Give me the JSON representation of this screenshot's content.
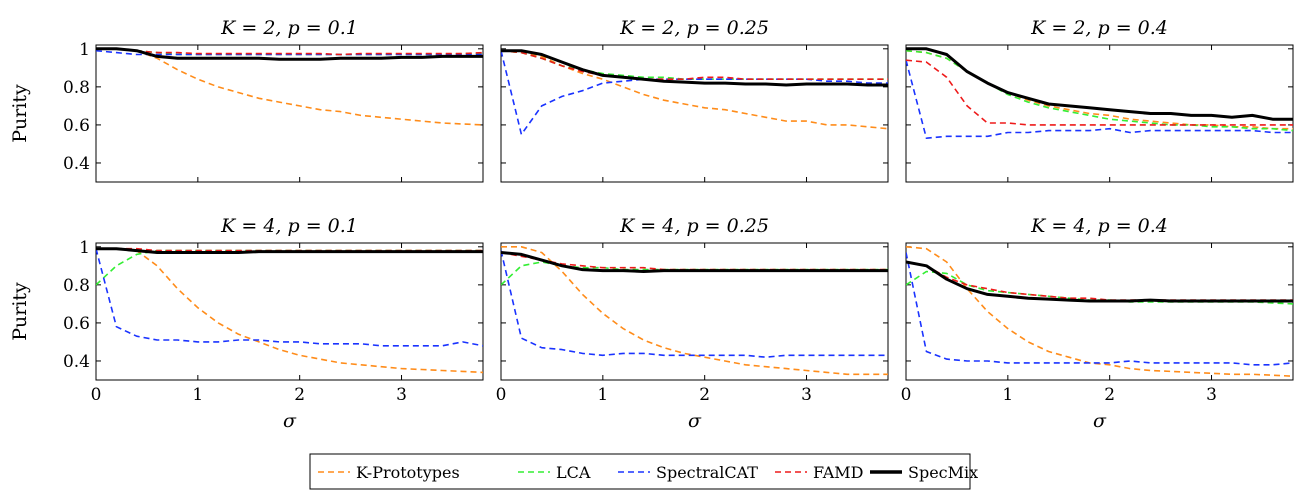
{
  "chart_data": [
    {
      "type": "line",
      "title": "K = 2, p = 0.1",
      "xlabel": "",
      "ylabel": "Purity",
      "xlim": [
        0,
        3.8
      ],
      "ylim": [
        0.3,
        1.02
      ],
      "x": [
        0,
        0.2,
        0.4,
        0.6,
        0.8,
        1.0,
        1.2,
        1.4,
        1.6,
        1.8,
        2.0,
        2.2,
        2.4,
        2.6,
        2.8,
        3.0,
        3.2,
        3.4,
        3.6,
        3.8
      ],
      "series": [
        {
          "name": "K-Prototypes",
          "values": [
            1.0,
            1.0,
            0.99,
            0.95,
            0.89,
            0.84,
            0.8,
            0.77,
            0.74,
            0.72,
            0.7,
            0.68,
            0.67,
            0.65,
            0.64,
            0.63,
            0.62,
            0.61,
            0.605,
            0.6
          ]
        },
        {
          "name": "LCA",
          "values": [
            1.0,
            1.0,
            0.99,
            0.98,
            0.97,
            0.97,
            0.97,
            0.97,
            0.97,
            0.97,
            0.97,
            0.97,
            0.97,
            0.97,
            0.97,
            0.97,
            0.97,
            0.97,
            0.975,
            0.975
          ]
        },
        {
          "name": "SpectralCAT",
          "values": [
            0.99,
            0.98,
            0.97,
            0.97,
            0.97,
            0.97,
            0.97,
            0.97,
            0.97,
            0.97,
            0.97,
            0.97,
            0.97,
            0.97,
            0.97,
            0.97,
            0.97,
            0.97,
            0.97,
            0.97
          ]
        },
        {
          "name": "FAMD",
          "values": [
            1.0,
            1.0,
            0.99,
            0.98,
            0.98,
            0.975,
            0.975,
            0.975,
            0.975,
            0.975,
            0.975,
            0.975,
            0.97,
            0.975,
            0.975,
            0.975,
            0.975,
            0.975,
            0.975,
            0.98
          ]
        },
        {
          "name": "SpecMix",
          "values": [
            1.0,
            1.0,
            0.99,
            0.96,
            0.95,
            0.95,
            0.95,
            0.95,
            0.95,
            0.945,
            0.945,
            0.945,
            0.95,
            0.95,
            0.95,
            0.955,
            0.955,
            0.96,
            0.96,
            0.96
          ]
        }
      ]
    },
    {
      "type": "line",
      "title": "K = 2, p = 0.25",
      "xlabel": "",
      "ylabel": "",
      "xlim": [
        0,
        3.8
      ],
      "ylim": [
        0.3,
        1.02
      ],
      "x": [
        0,
        0.2,
        0.4,
        0.6,
        0.8,
        1.0,
        1.2,
        1.4,
        1.6,
        1.8,
        2.0,
        2.2,
        2.4,
        2.6,
        2.8,
        3.0,
        3.2,
        3.4,
        3.6,
        3.8
      ],
      "series": [
        {
          "name": "K-Prototypes",
          "values": [
            0.99,
            0.98,
            0.96,
            0.91,
            0.87,
            0.84,
            0.8,
            0.76,
            0.73,
            0.71,
            0.69,
            0.68,
            0.66,
            0.64,
            0.62,
            0.62,
            0.6,
            0.6,
            0.59,
            0.58
          ]
        },
        {
          "name": "LCA",
          "values": [
            0.99,
            0.98,
            0.95,
            0.91,
            0.89,
            0.87,
            0.86,
            0.85,
            0.85,
            0.84,
            0.84,
            0.84,
            0.84,
            0.84,
            0.84,
            0.84,
            0.84,
            0.84,
            0.84,
            0.84
          ]
        },
        {
          "name": "SpectralCAT",
          "values": [
            0.99,
            0.55,
            0.7,
            0.75,
            0.78,
            0.82,
            0.83,
            0.84,
            0.84,
            0.84,
            0.84,
            0.84,
            0.84,
            0.84,
            0.84,
            0.84,
            0.83,
            0.83,
            0.82,
            0.82
          ]
        },
        {
          "name": "FAMD",
          "values": [
            0.99,
            0.98,
            0.95,
            0.91,
            0.88,
            0.86,
            0.85,
            0.84,
            0.84,
            0.84,
            0.85,
            0.85,
            0.84,
            0.84,
            0.84,
            0.84,
            0.84,
            0.84,
            0.84,
            0.84
          ]
        },
        {
          "name": "SpecMix",
          "values": [
            0.99,
            0.99,
            0.97,
            0.93,
            0.89,
            0.86,
            0.85,
            0.84,
            0.83,
            0.825,
            0.82,
            0.82,
            0.815,
            0.815,
            0.81,
            0.815,
            0.815,
            0.815,
            0.81,
            0.81
          ]
        }
      ]
    },
    {
      "type": "line",
      "title": "K = 2, p = 0.4",
      "xlabel": "",
      "ylabel": "",
      "xlim": [
        0,
        3.8
      ],
      "ylim": [
        0.3,
        1.02
      ],
      "x": [
        0,
        0.2,
        0.4,
        0.6,
        0.8,
        1.0,
        1.2,
        1.4,
        1.6,
        1.8,
        2.0,
        2.2,
        2.4,
        2.6,
        2.8,
        3.0,
        3.2,
        3.4,
        3.6,
        3.8
      ],
      "series": [
        {
          "name": "K-Prototypes",
          "values": [
            0.99,
            0.98,
            0.95,
            0.88,
            0.82,
            0.77,
            0.73,
            0.7,
            0.68,
            0.66,
            0.65,
            0.63,
            0.62,
            0.61,
            0.6,
            0.6,
            0.59,
            0.59,
            0.58,
            0.58
          ]
        },
        {
          "name": "LCA",
          "values": [
            0.99,
            0.98,
            0.95,
            0.88,
            0.82,
            0.76,
            0.72,
            0.69,
            0.67,
            0.65,
            0.63,
            0.62,
            0.61,
            0.6,
            0.6,
            0.59,
            0.59,
            0.58,
            0.58,
            0.57
          ]
        },
        {
          "name": "SpectralCAT",
          "values": [
            0.94,
            0.53,
            0.54,
            0.54,
            0.54,
            0.56,
            0.56,
            0.57,
            0.57,
            0.57,
            0.58,
            0.56,
            0.57,
            0.57,
            0.57,
            0.57,
            0.57,
            0.57,
            0.56,
            0.56
          ]
        },
        {
          "name": "FAMD",
          "values": [
            0.94,
            0.93,
            0.85,
            0.7,
            0.61,
            0.61,
            0.6,
            0.6,
            0.6,
            0.6,
            0.6,
            0.6,
            0.6,
            0.6,
            0.6,
            0.6,
            0.6,
            0.6,
            0.6,
            0.6
          ]
        },
        {
          "name": "SpecMix",
          "values": [
            1.0,
            1.0,
            0.97,
            0.88,
            0.82,
            0.77,
            0.74,
            0.71,
            0.7,
            0.69,
            0.68,
            0.67,
            0.66,
            0.66,
            0.65,
            0.65,
            0.64,
            0.65,
            0.63,
            0.63
          ]
        }
      ]
    },
    {
      "type": "line",
      "title": "K = 4, p = 0.1",
      "xlabel": "σ",
      "ylabel": "Purity",
      "xlim": [
        0,
        3.8
      ],
      "ylim": [
        0.3,
        1.02
      ],
      "x": [
        0,
        0.2,
        0.4,
        0.6,
        0.8,
        1.0,
        1.2,
        1.4,
        1.6,
        1.8,
        2.0,
        2.2,
        2.4,
        2.6,
        2.8,
        3.0,
        3.2,
        3.4,
        3.6,
        3.8
      ],
      "series": [
        {
          "name": "K-Prototypes",
          "values": [
            0.99,
            0.99,
            0.98,
            0.9,
            0.78,
            0.68,
            0.6,
            0.54,
            0.5,
            0.46,
            0.43,
            0.41,
            0.39,
            0.38,
            0.37,
            0.36,
            0.355,
            0.35,
            0.345,
            0.34
          ]
        },
        {
          "name": "LCA",
          "values": [
            0.8,
            0.9,
            0.96,
            0.98,
            0.98,
            0.98,
            0.98,
            0.98,
            0.98,
            0.98,
            0.98,
            0.98,
            0.98,
            0.98,
            0.98,
            0.98,
            0.98,
            0.98,
            0.98,
            0.98
          ]
        },
        {
          "name": "SpectralCAT",
          "values": [
            0.99,
            0.58,
            0.53,
            0.51,
            0.51,
            0.5,
            0.5,
            0.51,
            0.51,
            0.5,
            0.5,
            0.49,
            0.49,
            0.49,
            0.48,
            0.48,
            0.48,
            0.48,
            0.5,
            0.48
          ]
        },
        {
          "name": "FAMD",
          "values": [
            0.99,
            0.99,
            0.99,
            0.98,
            0.98,
            0.98,
            0.98,
            0.98,
            0.98,
            0.98,
            0.98,
            0.98,
            0.98,
            0.98,
            0.98,
            0.98,
            0.98,
            0.98,
            0.98,
            0.98
          ]
        },
        {
          "name": "SpecMix",
          "values": [
            0.99,
            0.99,
            0.98,
            0.97,
            0.97,
            0.97,
            0.97,
            0.97,
            0.975,
            0.975,
            0.975,
            0.975,
            0.975,
            0.975,
            0.975,
            0.975,
            0.975,
            0.975,
            0.975,
            0.975
          ]
        }
      ]
    },
    {
      "type": "line",
      "title": "K = 4, p = 0.25",
      "xlabel": "σ",
      "ylabel": "",
      "xlim": [
        0,
        3.8
      ],
      "ylim": [
        0.3,
        1.02
      ],
      "x": [
        0,
        0.2,
        0.4,
        0.6,
        0.8,
        1.0,
        1.2,
        1.4,
        1.6,
        1.8,
        2.0,
        2.2,
        2.4,
        2.6,
        2.8,
        3.0,
        3.2,
        3.4,
        3.6,
        3.8
      ],
      "series": [
        {
          "name": "K-Prototypes",
          "values": [
            1.0,
            1.0,
            0.97,
            0.87,
            0.75,
            0.65,
            0.57,
            0.51,
            0.47,
            0.44,
            0.42,
            0.4,
            0.38,
            0.37,
            0.36,
            0.35,
            0.34,
            0.33,
            0.33,
            0.33
          ]
        },
        {
          "name": "LCA",
          "values": [
            0.8,
            0.9,
            0.92,
            0.9,
            0.89,
            0.89,
            0.88,
            0.88,
            0.88,
            0.88,
            0.88,
            0.88,
            0.88,
            0.88,
            0.88,
            0.88,
            0.88,
            0.88,
            0.88,
            0.88
          ]
        },
        {
          "name": "SpectralCAT",
          "values": [
            0.98,
            0.52,
            0.47,
            0.46,
            0.44,
            0.43,
            0.44,
            0.44,
            0.43,
            0.43,
            0.43,
            0.43,
            0.43,
            0.42,
            0.43,
            0.43,
            0.43,
            0.43,
            0.43,
            0.43
          ]
        },
        {
          "name": "FAMD",
          "values": [
            0.97,
            0.95,
            0.93,
            0.91,
            0.9,
            0.89,
            0.89,
            0.89,
            0.88,
            0.88,
            0.88,
            0.88,
            0.88,
            0.88,
            0.88,
            0.88,
            0.88,
            0.88,
            0.88,
            0.88
          ]
        },
        {
          "name": "SpecMix",
          "values": [
            0.97,
            0.96,
            0.93,
            0.9,
            0.88,
            0.875,
            0.875,
            0.87,
            0.875,
            0.875,
            0.875,
            0.875,
            0.875,
            0.875,
            0.875,
            0.875,
            0.875,
            0.875,
            0.875,
            0.875
          ]
        }
      ]
    },
    {
      "type": "line",
      "title": "K = 4, p = 0.4",
      "xlabel": "σ",
      "ylabel": "",
      "xlim": [
        0,
        3.8
      ],
      "ylim": [
        0.3,
        1.02
      ],
      "x": [
        0,
        0.2,
        0.4,
        0.6,
        0.8,
        1.0,
        1.2,
        1.4,
        1.6,
        1.8,
        2.0,
        2.2,
        2.4,
        2.6,
        2.8,
        3.0,
        3.2,
        3.4,
        3.6,
        3.8
      ],
      "series": [
        {
          "name": "K-Prototypes",
          "values": [
            1.0,
            0.99,
            0.92,
            0.78,
            0.66,
            0.57,
            0.5,
            0.45,
            0.42,
            0.39,
            0.38,
            0.36,
            0.35,
            0.345,
            0.34,
            0.335,
            0.33,
            0.33,
            0.325,
            0.32
          ]
        },
        {
          "name": "LCA",
          "values": [
            0.8,
            0.87,
            0.86,
            0.8,
            0.77,
            0.76,
            0.75,
            0.74,
            0.73,
            0.72,
            0.72,
            0.71,
            0.71,
            0.71,
            0.71,
            0.71,
            0.71,
            0.71,
            0.705,
            0.7
          ]
        },
        {
          "name": "SpectralCAT",
          "values": [
            0.97,
            0.45,
            0.41,
            0.4,
            0.4,
            0.39,
            0.39,
            0.39,
            0.39,
            0.39,
            0.39,
            0.4,
            0.39,
            0.39,
            0.39,
            0.39,
            0.39,
            0.38,
            0.38,
            0.39
          ]
        },
        {
          "name": "FAMD",
          "values": [
            0.92,
            0.9,
            0.84,
            0.8,
            0.78,
            0.76,
            0.75,
            0.74,
            0.73,
            0.73,
            0.72,
            0.72,
            0.72,
            0.72,
            0.72,
            0.72,
            0.72,
            0.72,
            0.72,
            0.72
          ]
        },
        {
          "name": "SpecMix",
          "values": [
            0.92,
            0.9,
            0.83,
            0.78,
            0.75,
            0.74,
            0.73,
            0.725,
            0.72,
            0.715,
            0.715,
            0.715,
            0.72,
            0.715,
            0.715,
            0.715,
            0.715,
            0.715,
            0.715,
            0.715
          ]
        }
      ]
    }
  ],
  "xticks": [
    "0",
    "1",
    "2",
    "3"
  ],
  "yticks": [
    "0.4",
    "0.6",
    "0.8",
    "1"
  ],
  "legend": {
    "placement": "bottom-center",
    "items": [
      {
        "label": "K-Prototypes",
        "color": "#ff8c1a",
        "style": "dashed"
      },
      {
        "label": "LCA",
        "color": "#33ee33",
        "style": "dashed"
      },
      {
        "label": "SpectralCAT",
        "color": "#1a33ff",
        "style": "dashed"
      },
      {
        "label": "FAMD",
        "color": "#ee1a1a",
        "style": "dashed"
      },
      {
        "label": "SpecMix",
        "color": "#000000",
        "style": "solid"
      }
    ]
  }
}
